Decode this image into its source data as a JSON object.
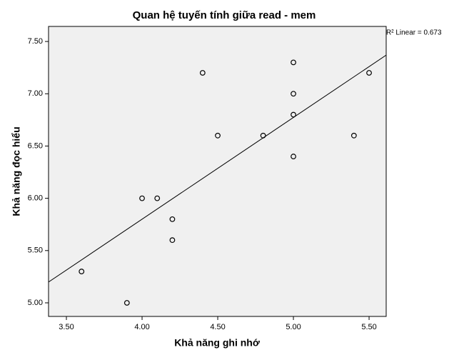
{
  "chart_data": {
    "type": "scatter",
    "title": "Quan hệ tuyến tính giữa read - mem",
    "x_label": "Khả năng ghi nhớ",
    "y_label": "Khả năng đọc hiểu",
    "annotation": "R² Linear = 0.673",
    "x": [
      3.6,
      3.9,
      4.0,
      4.1,
      4.2,
      4.2,
      4.4,
      4.5,
      4.8,
      5.0,
      5.0,
      5.0,
      5.0,
      5.4,
      5.5
    ],
    "values": [
      5.3,
      5.0,
      6.0,
      6.0,
      5.8,
      5.6,
      7.2,
      6.6,
      6.6,
      7.3,
      7.0,
      6.8,
      6.4,
      6.6,
      7.2
    ],
    "color": "#000000",
    "fit_line": {
      "slope": 0.973,
      "intercept": 1.908
    },
    "xlim": [
      3.382,
      5.613
    ],
    "ylim": [
      4.87,
      7.644
    ],
    "xticks": [
      {
        "value": 3.5,
        "label": "3.50"
      },
      {
        "value": 4.0,
        "label": "4.00"
      },
      {
        "value": 4.5,
        "label": "4.50"
      },
      {
        "value": 5.0,
        "label": "5.00"
      },
      {
        "value": 5.5,
        "label": "5.50"
      }
    ],
    "yticks": [
      {
        "value": 5.0,
        "label": "5.00"
      },
      {
        "value": 5.5,
        "label": "5.50"
      },
      {
        "value": 6.0,
        "label": "6.00"
      },
      {
        "value": 6.5,
        "label": "6.50"
      },
      {
        "value": 7.0,
        "label": "7.00"
      },
      {
        "value": 7.5,
        "label": "7.50"
      }
    ]
  }
}
